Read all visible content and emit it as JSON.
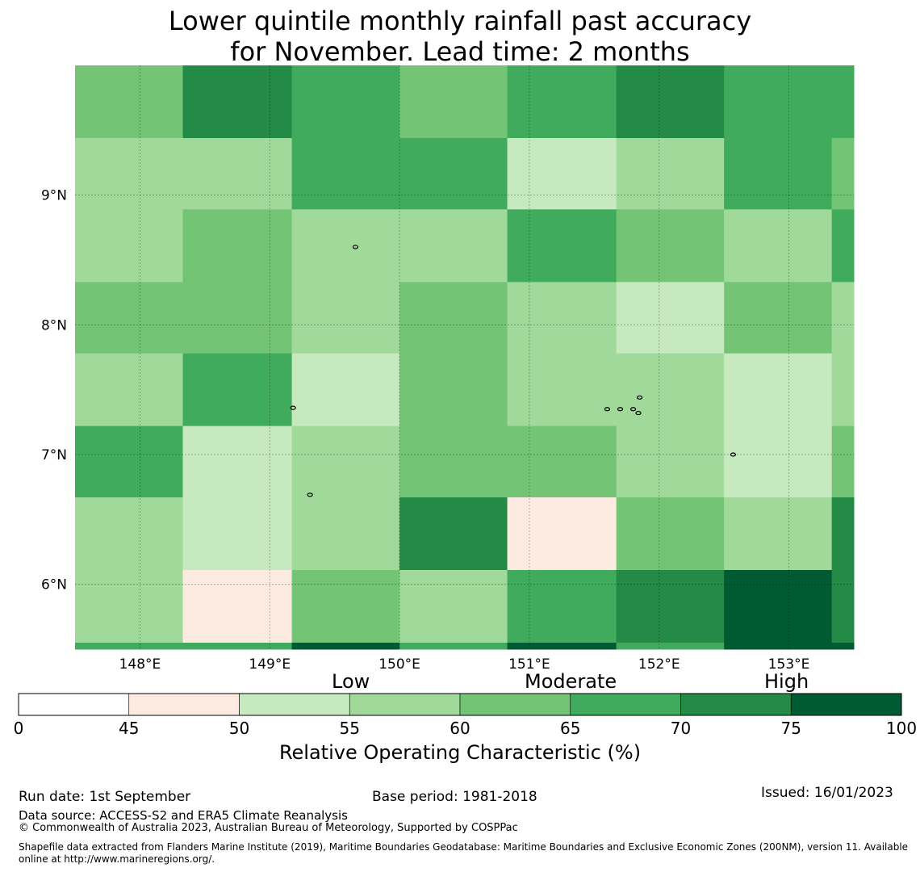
{
  "chart_data": {
    "type": "heatmap",
    "title_line1": "Lower quintile monthly rainfall past accuracy",
    "title_line2": "for November. Lead time: 2 months",
    "x_tick_labels": [
      "148°E",
      "149°E",
      "150°E",
      "151°E",
      "152°E",
      "153°E"
    ],
    "x_tick_values": [
      148,
      149,
      150,
      151,
      152,
      153
    ],
    "y_tick_labels": [
      "9°N",
      "8°N",
      "7°N",
      "6°N"
    ],
    "y_tick_values": [
      9,
      8,
      7,
      6
    ],
    "x_range": [
      147.5,
      153.5
    ],
    "y_range": [
      5.5,
      10.0
    ],
    "grid": true,
    "column_edges": [
      147.5,
      148.33,
      149.17,
      150.0,
      150.83,
      151.67,
      152.5,
      153.33,
      153.5
    ],
    "row_edges": [
      10.0,
      9.44,
      8.89,
      8.33,
      7.78,
      7.22,
      6.67,
      6.11,
      5.55,
      5.5
    ],
    "cells_roc_percent": [
      [
        62,
        72,
        68,
        62,
        68,
        72,
        68,
        68
      ],
      [
        58,
        58,
        68,
        68,
        53,
        58,
        68,
        62
      ],
      [
        58,
        62,
        58,
        58,
        68,
        62,
        58,
        68
      ],
      [
        62,
        62,
        58,
        62,
        58,
        53,
        62,
        58
      ],
      [
        58,
        68,
        53,
        62,
        58,
        58,
        53,
        58
      ],
      [
        68,
        53,
        58,
        62,
        62,
        58,
        53,
        62
      ],
      [
        58,
        53,
        58,
        72,
        48,
        62,
        58,
        72
      ],
      [
        58,
        48,
        62,
        58,
        68,
        72,
        80,
        72
      ],
      [
        68,
        68,
        80,
        68,
        80,
        68,
        80,
        80
      ]
    ],
    "islands": [
      {
        "lon": 149.66,
        "lat": 8.6
      },
      {
        "lon": 149.18,
        "lat": 7.36
      },
      {
        "lon": 149.31,
        "lat": 6.69
      },
      {
        "lon": 151.6,
        "lat": 7.35
      },
      {
        "lon": 151.7,
        "lat": 7.35
      },
      {
        "lon": 151.8,
        "lat": 7.35
      },
      {
        "lon": 151.85,
        "lat": 7.44
      },
      {
        "lon": 151.84,
        "lat": 7.32
      },
      {
        "lon": 152.57,
        "lat": 7.0
      }
    ],
    "colorbar": {
      "bounds": [
        0,
        45,
        50,
        55,
        60,
        65,
        70,
        75,
        100
      ],
      "tick_labels": [
        "0",
        "45",
        "50",
        "55",
        "60",
        "65",
        "70",
        "75",
        "100"
      ],
      "colors": [
        "#ffffff",
        "#fdebe1",
        "#c7e9c0",
        "#a1d99b",
        "#74c476",
        "#41ab5d",
        "#238b45",
        "#005a32"
      ],
      "category_labels": [
        "Low",
        "Moderate",
        "High"
      ],
      "xlabel": "Relative Operating Characteristic (%)"
    }
  },
  "footer": {
    "run_date": "Run date: 1st September",
    "base_period": "Base period: 1981-2018",
    "issued": "Issued: 16/01/2023",
    "data_source": "Data source: ACCESS-S2 and ERA5 Climate Reanalysis",
    "copyright": "© Commonwealth of Australia 2023, Australian Bureau of Meteorology, Supported by COSPPac",
    "shapefile": "Shapefile data extracted from Flanders Marine Institute (2019), Maritime Boundaries Geodatabase: Maritime Boundaries and Exclusive Economic Zones (200NM), version 11. Available online at http://www.marineregions.org/."
  }
}
